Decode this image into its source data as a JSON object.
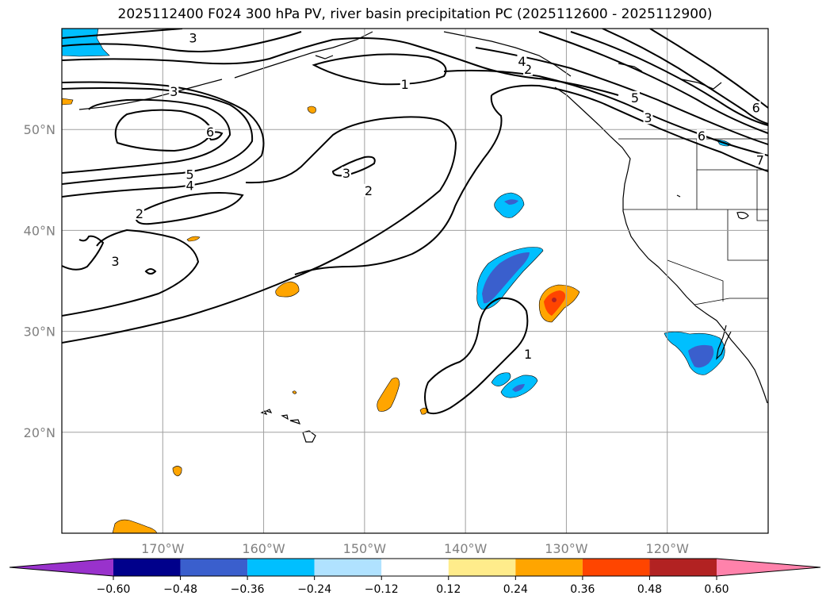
{
  "title": "2025112400 F024 300 hPa PV, river basin precipitation PC (2025112600 - 2025112900)",
  "map": {
    "lon_range": [
      -180,
      -110
    ],
    "lat_range": [
      10,
      60
    ],
    "lon_ticks": [
      {
        "value": -170,
        "label": "170°W"
      },
      {
        "value": -160,
        "label": "160°W"
      },
      {
        "value": -150,
        "label": "150°W"
      },
      {
        "value": -140,
        "label": "140°W"
      },
      {
        "value": -130,
        "label": "130°W"
      },
      {
        "value": -120,
        "label": "120°W"
      }
    ],
    "lat_ticks": [
      {
        "value": 50,
        "label": "50°N"
      },
      {
        "value": 40,
        "label": "40°N"
      },
      {
        "value": 30,
        "label": "30°N"
      },
      {
        "value": 20,
        "label": "20°N"
      }
    ],
    "contour_labels": [
      {
        "text": "3",
        "lon": -167,
        "lat": 59
      },
      {
        "text": "1",
        "lon": -146,
        "lat": 54.4
      },
      {
        "text": "2",
        "lon": -133.8,
        "lat": 55.9
      },
      {
        "text": "4",
        "lon": -134.4,
        "lat": 56.7
      },
      {
        "text": "3",
        "lon": -168.9,
        "lat": 53.7
      },
      {
        "text": "6",
        "lon": -165.3,
        "lat": 49.7
      },
      {
        "text": "5",
        "lon": -167.3,
        "lat": 45.5
      },
      {
        "text": "4",
        "lon": -167.3,
        "lat": 44.4
      },
      {
        "text": "3",
        "lon": -151.8,
        "lat": 45.6
      },
      {
        "text": "2",
        "lon": -149.6,
        "lat": 43.9
      },
      {
        "text": "2",
        "lon": -172.3,
        "lat": 41.6
      },
      {
        "text": "3",
        "lon": -174.7,
        "lat": 36.9
      },
      {
        "text": "5",
        "lon": -123.2,
        "lat": 53.1
      },
      {
        "text": "3",
        "lon": -121.9,
        "lat": 51.1
      },
      {
        "text": "6",
        "lon": -111.2,
        "lat": 52.1
      },
      {
        "text": "6",
        "lon": -116.6,
        "lat": 49.3
      },
      {
        "text": "7",
        "lon": -110.8,
        "lat": 46.9
      },
      {
        "text": "1",
        "lon": -133.8,
        "lat": 27.7
      }
    ]
  },
  "chart_data": {
    "type": "contour",
    "title": "2025112400 F024 300 hPa PV, river basin precipitation PC (2025112600 - 2025112900)",
    "contour_field": "300 hPa PV",
    "contour_levels": [
      1,
      2,
      3,
      4,
      5,
      6,
      7
    ],
    "fill_field": "river basin precipitation PC",
    "colorbar": {
      "extend": "both",
      "tick_values": [
        -0.6,
        -0.48,
        -0.36,
        -0.24,
        -0.12,
        0.12,
        0.24,
        0.36,
        0.48,
        0.6
      ],
      "tick_labels": [
        "−0.60",
        "−0.48",
        "−0.36",
        "−0.24",
        "−0.12",
        "0.12",
        "0.24",
        "0.36",
        "0.48",
        "0.60"
      ],
      "colors": [
        "#9932cc",
        "#00008b",
        "#3a5fcd",
        "#00bfff",
        "#b0e2ff",
        "#ffffff",
        "#ffec8b",
        "#ffa500",
        "#ff4500",
        "#b22222",
        "#ff82ab"
      ]
    }
  }
}
